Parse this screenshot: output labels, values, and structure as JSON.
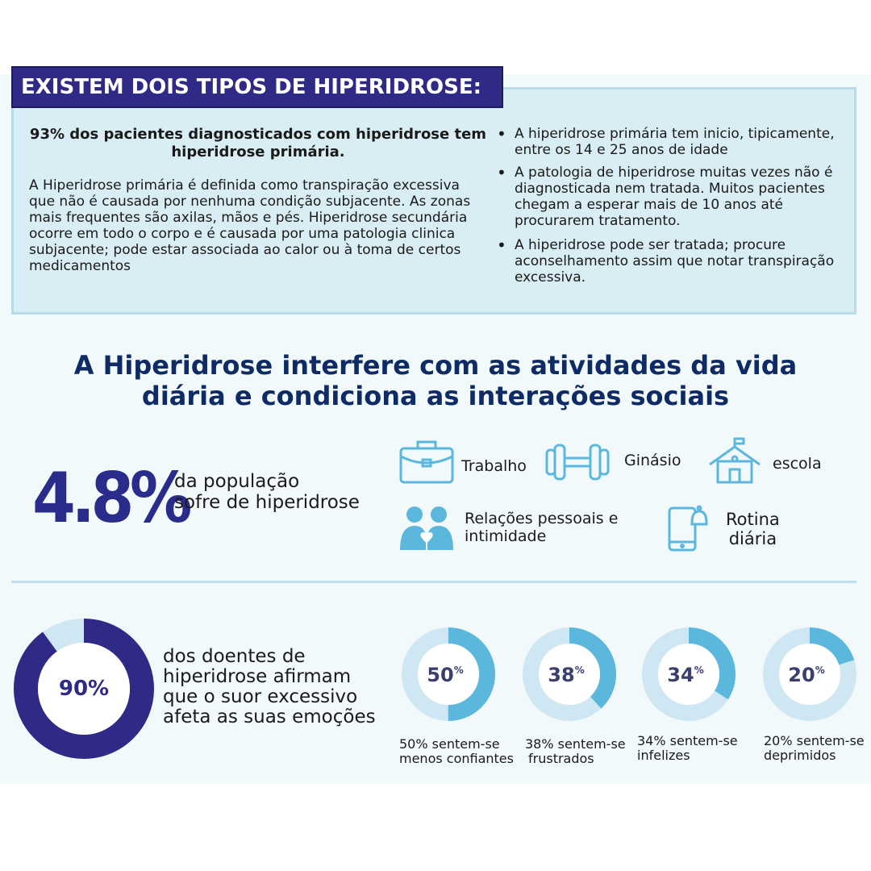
{
  "header": {
    "title": "EXISTEM DOIS TIPOS DE HIPERIDROSE:"
  },
  "intro": {
    "lead": "93% dos pacientes diagnosticados com hiperidrose tem hiperidrose primária.",
    "body": "A Hiperidrose primária é definida como transpiração excessiva que não é causada por nenhuma condição subjacente. As zonas mais frequentes são axilas, mãos e pés. Hiperidrose secundária ocorre em todo o corpo e é causada por uma patologia clinica subjacente; pode estar associada ao calor ou à toma de certos medicamentos"
  },
  "bullets": [
    "A hiperidrose primária tem inicio, tipicamente, entre os 14 e 25 anos de idade",
    "A patologia de hiperidrose muitas vezes não é diagnosticada nem tratada. Muitos pacientes chegam a esperar mais de 10 anos até procurarem tratamento.",
    "A hiperidrose pode ser tratada; procure aconselhamento assim que notar transpiração excessiva."
  ],
  "section": {
    "title": "A Hiperidrose interfere com as atividades da vida diária e condiciona as interações sociais"
  },
  "population": {
    "value": "4.8%",
    "line1": "da população",
    "line2": "sofre de hiperidrose"
  },
  "activities": {
    "work": {
      "label": "Trabalho",
      "icon": "briefcase-icon"
    },
    "gym": {
      "label": "Ginásio",
      "icon": "dumbbell-icon"
    },
    "school": {
      "label": "escola",
      "icon": "school-icon"
    },
    "relations": {
      "line1": "Relações pessoais e",
      "line2": "intimidade",
      "icon": "couple-icon"
    },
    "routine": {
      "line1": "Rotina",
      "line2": "diária",
      "icon": "phone-bell-icon"
    }
  },
  "emotions": {
    "main": {
      "label": "90%",
      "percent": 90,
      "lines": [
        "dos doentes de",
        "hiperidrose afirmam",
        "que o suor excessivo",
        "afeta as suas emoções"
      ]
    },
    "items": [
      {
        "label": "50",
        "percent": 50,
        "line1": "50% sentem-se",
        "line2": "menos confiantes"
      },
      {
        "label": "38",
        "percent": 38,
        "line1": "38% sentem-se",
        "line2": "frustrados"
      },
      {
        "label": "34",
        "percent": 34,
        "line1": "34% sentem-se",
        "line2": "infelizes"
      },
      {
        "label": "20",
        "percent": 20,
        "line1": "20% sentem-se",
        "line2": "deprimidos"
      }
    ],
    "percent_sign": "%"
  },
  "colors": {
    "navy": "#2e2a86",
    "title_blue": "#0f2b66",
    "accent": "#5cb7dd",
    "light": "#cfe7f2"
  }
}
